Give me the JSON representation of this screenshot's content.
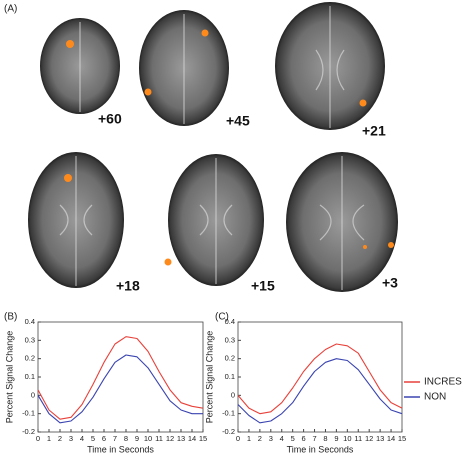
{
  "figure": {
    "panel_labels": [
      "(A)",
      "(B)",
      "(C)"
    ],
    "slices": [
      "+60",
      "+45",
      "+21",
      "+18",
      "+15",
      "+3"
    ],
    "legend": [
      {
        "name": "INCRES",
        "color": "#e8413a"
      },
      {
        "name": "NON",
        "color": "#3a44b0"
      }
    ]
  },
  "chart_data": [
    {
      "type": "line",
      "xlabel": "Time in Seconds",
      "ylabel": "Percent Signal Change",
      "x": [
        0,
        1,
        2,
        3,
        4,
        5,
        6,
        7,
        8,
        9,
        10,
        11,
        12,
        13,
        14,
        15
      ],
      "series": [
        {
          "color": "#e8413a",
          "values": [
            0.03,
            -0.08,
            -0.13,
            -0.12,
            -0.05,
            0.06,
            0.18,
            0.28,
            0.32,
            0.31,
            0.24,
            0.13,
            0.03,
            -0.04,
            -0.06,
            -0.07
          ]
        },
        {
          "color": "#3a44b0",
          "values": [
            0.0,
            -0.1,
            -0.15,
            -0.14,
            -0.09,
            -0.01,
            0.09,
            0.18,
            0.22,
            0.21,
            0.15,
            0.06,
            -0.03,
            -0.08,
            -0.1,
            -0.1
          ]
        }
      ],
      "xlim": [
        0,
        15
      ],
      "xticks": [
        0,
        1,
        2,
        3,
        4,
        5,
        6,
        7,
        8,
        9,
        10,
        11,
        12,
        13,
        14,
        15
      ],
      "ylim": [
        -0.2,
        0.4
      ],
      "yticks": [
        -0.2,
        -0.1,
        0,
        0.1,
        0.2,
        0.3,
        0.4
      ]
    },
    {
      "type": "line",
      "xlabel": "Time in Seconds",
      "ylabel": "Percent Signal Change",
      "x": [
        0,
        1,
        2,
        3,
        4,
        5,
        6,
        7,
        8,
        9,
        10,
        11,
        12,
        13,
        14,
        15
      ],
      "series": [
        {
          "color": "#e8413a",
          "values": [
            0.0,
            -0.07,
            -0.1,
            -0.09,
            -0.04,
            0.04,
            0.13,
            0.2,
            0.25,
            0.28,
            0.27,
            0.23,
            0.13,
            0.03,
            -0.04,
            -0.07
          ]
        },
        {
          "color": "#3a44b0",
          "values": [
            -0.05,
            -0.11,
            -0.15,
            -0.14,
            -0.1,
            -0.04,
            0.05,
            0.13,
            0.18,
            0.2,
            0.19,
            0.14,
            0.06,
            -0.02,
            -0.08,
            -0.1
          ]
        }
      ],
      "xlim": [
        0,
        15
      ],
      "xticks": [
        0,
        1,
        2,
        3,
        4,
        5,
        6,
        7,
        8,
        9,
        10,
        11,
        12,
        13,
        14,
        15
      ],
      "ylim": [
        -0.2,
        0.4
      ],
      "yticks": [
        -0.2,
        -0.1,
        0,
        0.1,
        0.2,
        0.3,
        0.4
      ]
    }
  ]
}
